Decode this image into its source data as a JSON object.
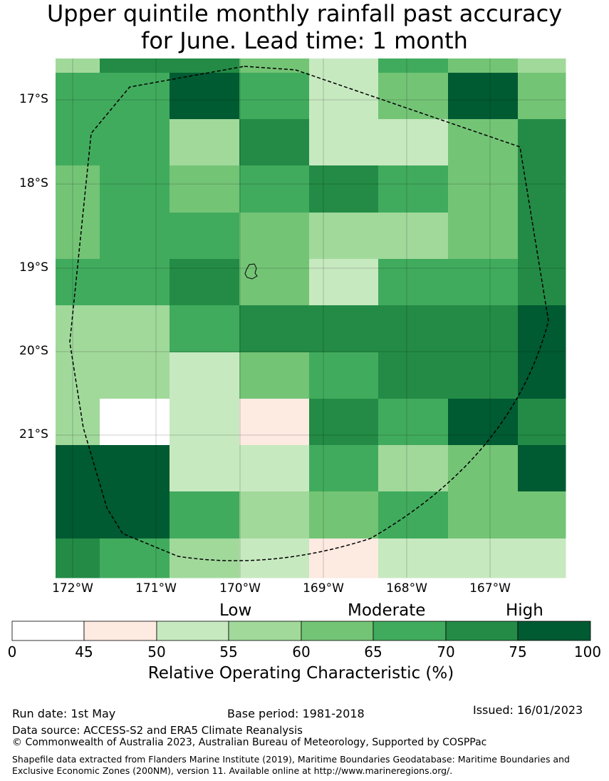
{
  "title": {
    "line1": "Upper quintile monthly rainfall past accuracy",
    "line2": "for June. Lead time: 1 month"
  },
  "axes": {
    "y_ticks": [
      "17°S",
      "18°S",
      "19°S",
      "20°S",
      "21°S"
    ],
    "x_ticks": [
      "172°W",
      "171°W",
      "170°W",
      "169°W",
      "168°W",
      "167°W"
    ]
  },
  "map_grid": {
    "description_levels": "cell values are colour class index 0-7 matching colorbar bins",
    "rows": [
      [
        3,
        6,
        6,
        4,
        2,
        5,
        4,
        3
      ],
      [
        5,
        5,
        7,
        5,
        2,
        4,
        7,
        4
      ],
      [
        5,
        5,
        3,
        6,
        2,
        2,
        4,
        6
      ],
      [
        4,
        5,
        4,
        5,
        6,
        5,
        4,
        6
      ],
      [
        4,
        5,
        5,
        4,
        3,
        3,
        4,
        6
      ],
      [
        5,
        5,
        6,
        4,
        2,
        5,
        5,
        6
      ],
      [
        3,
        3,
        5,
        6,
        6,
        6,
        6,
        7
      ],
      [
        3,
        3,
        2,
        4,
        5,
        6,
        6,
        7
      ],
      [
        3,
        0,
        2,
        1,
        6,
        5,
        7,
        6
      ],
      [
        7,
        7,
        2,
        2,
        5,
        3,
        4,
        7
      ],
      [
        7,
        7,
        5,
        3,
        4,
        5,
        4,
        4
      ],
      [
        6,
        5,
        3,
        2,
        1,
        2,
        2,
        2
      ]
    ]
  },
  "colorbar": {
    "colors": [
      "#ffffff",
      "#fdeae1",
      "#c7e9c0",
      "#a1d99b",
      "#74c476",
      "#41ab5d",
      "#238b45",
      "#005a32"
    ],
    "tick_labels": [
      "0",
      "45",
      "50",
      "55",
      "60",
      "65",
      "70",
      "75",
      "100"
    ],
    "categories": [
      "Low",
      "Moderate",
      "High"
    ],
    "title": "Relative Operating Characteristic (%)"
  },
  "footer": {
    "run_date": "Run date: 1st May",
    "base_period": "Base period: 1981-2018",
    "issued": "Issued: 16/01/2023",
    "data_source": "Data source: ACCESS-S2 and ERA5 Climate Reanalysis",
    "copyright": "© Commonwealth of Australia 2023, Australian Bureau of Meteorology, Supported by COSPPac",
    "shapefile": "Shapefile data extracted from Flanders Marine Institute (2019), Maritime Boundaries Geodatabase: Maritime Boundaries and Exclusive Economic Zones (200NM), version 11. Available online at http://www.marineregions.org/."
  }
}
